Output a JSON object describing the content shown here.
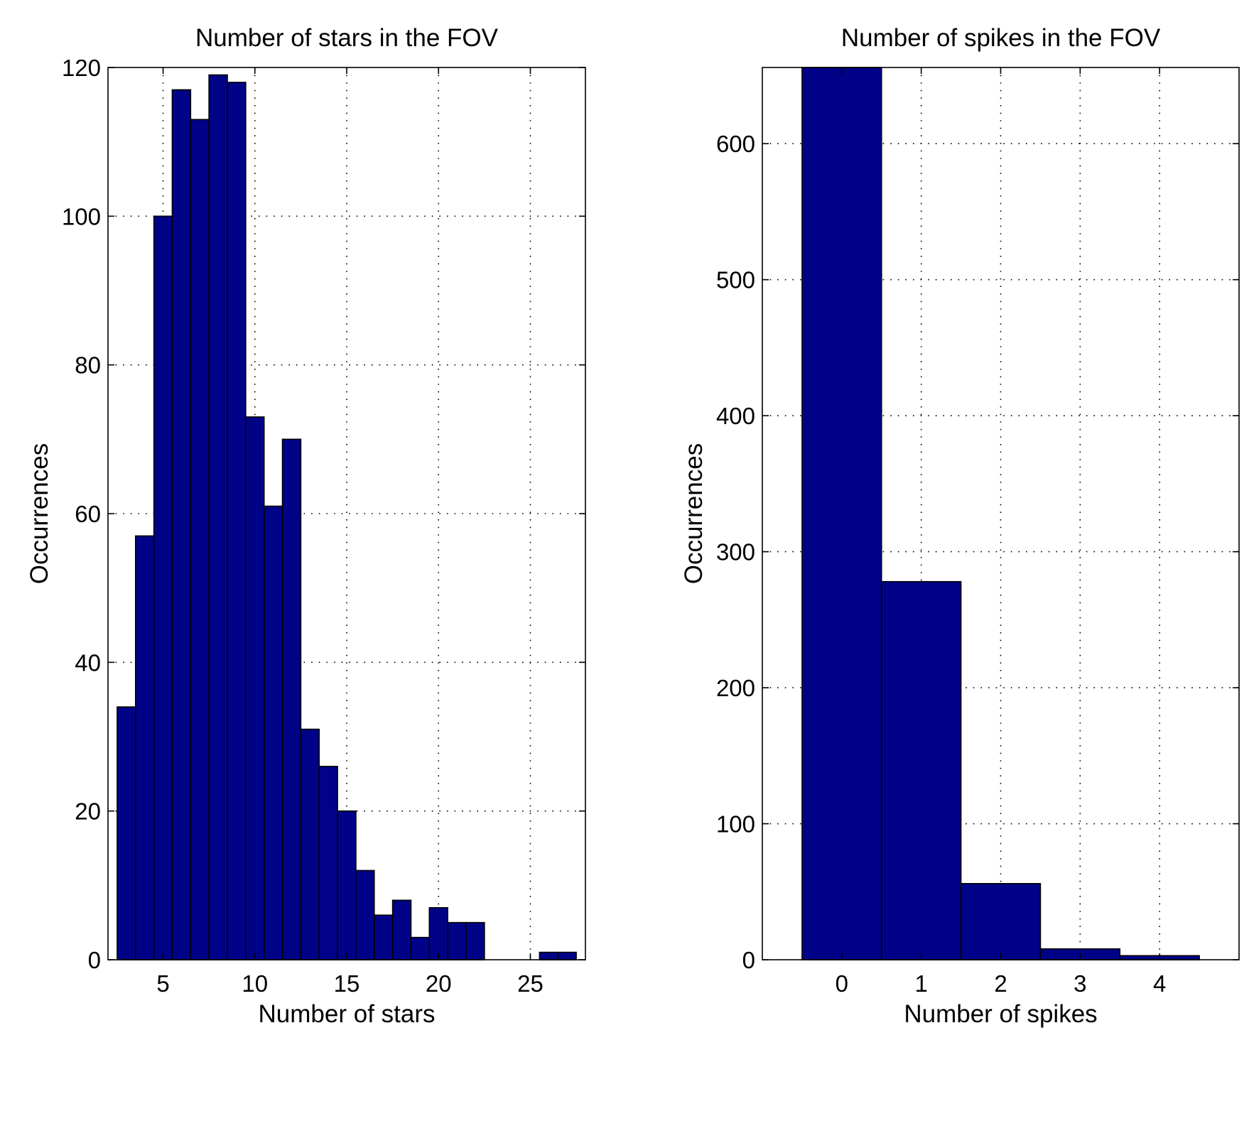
{
  "chart_data": [
    {
      "type": "bar",
      "title": "Number of stars in the FOV",
      "xlabel": "Number of stars",
      "ylabel": "Occurrences",
      "xlim": [
        2,
        28
      ],
      "ylim": [
        0,
        120
      ],
      "bin_width": 1,
      "grid": true,
      "xticks": [
        5,
        10,
        15,
        20,
        25
      ],
      "yticks": [
        0,
        20,
        40,
        60,
        80,
        100,
        120
      ],
      "categories": [
        3,
        4,
        5,
        6,
        7,
        8,
        9,
        10,
        11,
        12,
        13,
        14,
        15,
        16,
        17,
        18,
        19,
        20,
        21,
        22,
        23,
        24,
        25,
        26,
        27
      ],
      "values": [
        34,
        57,
        100,
        117,
        113,
        119,
        118,
        73,
        61,
        70,
        31,
        26,
        20,
        12,
        6,
        8,
        3,
        7,
        5,
        5,
        0,
        0,
        0,
        1,
        1
      ],
      "color": "#000387"
    },
    {
      "type": "bar",
      "title": "Number of spikes in the FOV",
      "xlabel": "Number of spikes",
      "ylabel": "Occurrences",
      "xlim": [
        -1,
        5
      ],
      "ylim": [
        0,
        656
      ],
      "bin_width": 1,
      "grid": true,
      "xticks": [
        0,
        1,
        2,
        3,
        4
      ],
      "yticks": [
        0,
        100,
        200,
        300,
        400,
        500,
        600
      ],
      "categories": [
        0,
        1,
        2,
        3,
        4
      ],
      "values": [
        656,
        278,
        56,
        8,
        3
      ],
      "color": "#000387"
    }
  ]
}
